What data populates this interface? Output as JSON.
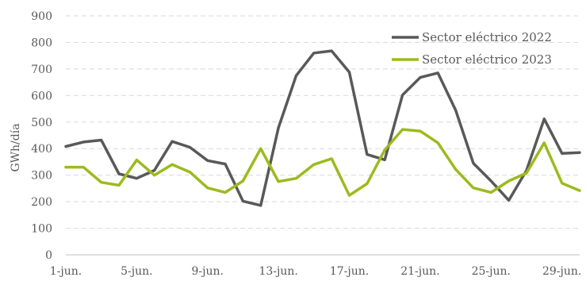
{
  "chart_data": {
    "type": "line",
    "title": "",
    "xlabel": "",
    "ylabel": "GWh/día",
    "ylim": [
      0,
      900
    ],
    "yticks": [
      "0",
      "100",
      "200",
      "300",
      "400",
      "500",
      "600",
      "700",
      "800",
      "900"
    ],
    "x": [
      "1-jun.",
      "2-jun.",
      "3-jun.",
      "4-jun.",
      "5-jun.",
      "6-jun.",
      "7-jun.",
      "8-jun.",
      "9-jun.",
      "10-jun.",
      "11-jun.",
      "12-jun.",
      "13-jun.",
      "14-jun.",
      "15-jun.",
      "16-jun.",
      "17-jun.",
      "18-jun.",
      "19-jun.",
      "20-jun.",
      "21-jun.",
      "22-jun.",
      "23-jun.",
      "24-jun.",
      "25-jun.",
      "26-jun.",
      "27-jun.",
      "28-jun.",
      "29-jun.",
      "30-jun."
    ],
    "xtick_labels": [
      "1-jun.",
      "5-jun.",
      "9-jun.",
      "13-jun.",
      "17-jun.",
      "21-jun.",
      "25-jun.",
      "29-jun."
    ],
    "grid": true,
    "legend_position": "top-right",
    "series": [
      {
        "name": "Sector eléctrico 2022",
        "color": "#595959",
        "values": [
          408,
          425,
          432,
          305,
          288,
          318,
          427,
          405,
          355,
          342,
          202,
          186,
          478,
          675,
          760,
          768,
          688,
          378,
          358,
          602,
          668,
          685,
          545,
          345,
          278,
          205,
          318,
          512,
          382,
          385
        ]
      },
      {
        "name": "Sector eléctrico 2023",
        "color": "#9bbb1d",
        "values": [
          330,
          330,
          273,
          262,
          357,
          300,
          340,
          312,
          252,
          235,
          278,
          400,
          276,
          288,
          340,
          362,
          224,
          268,
          395,
          472,
          466,
          422,
          322,
          252,
          235,
          278,
          308,
          422,
          270,
          242
        ]
      }
    ]
  }
}
